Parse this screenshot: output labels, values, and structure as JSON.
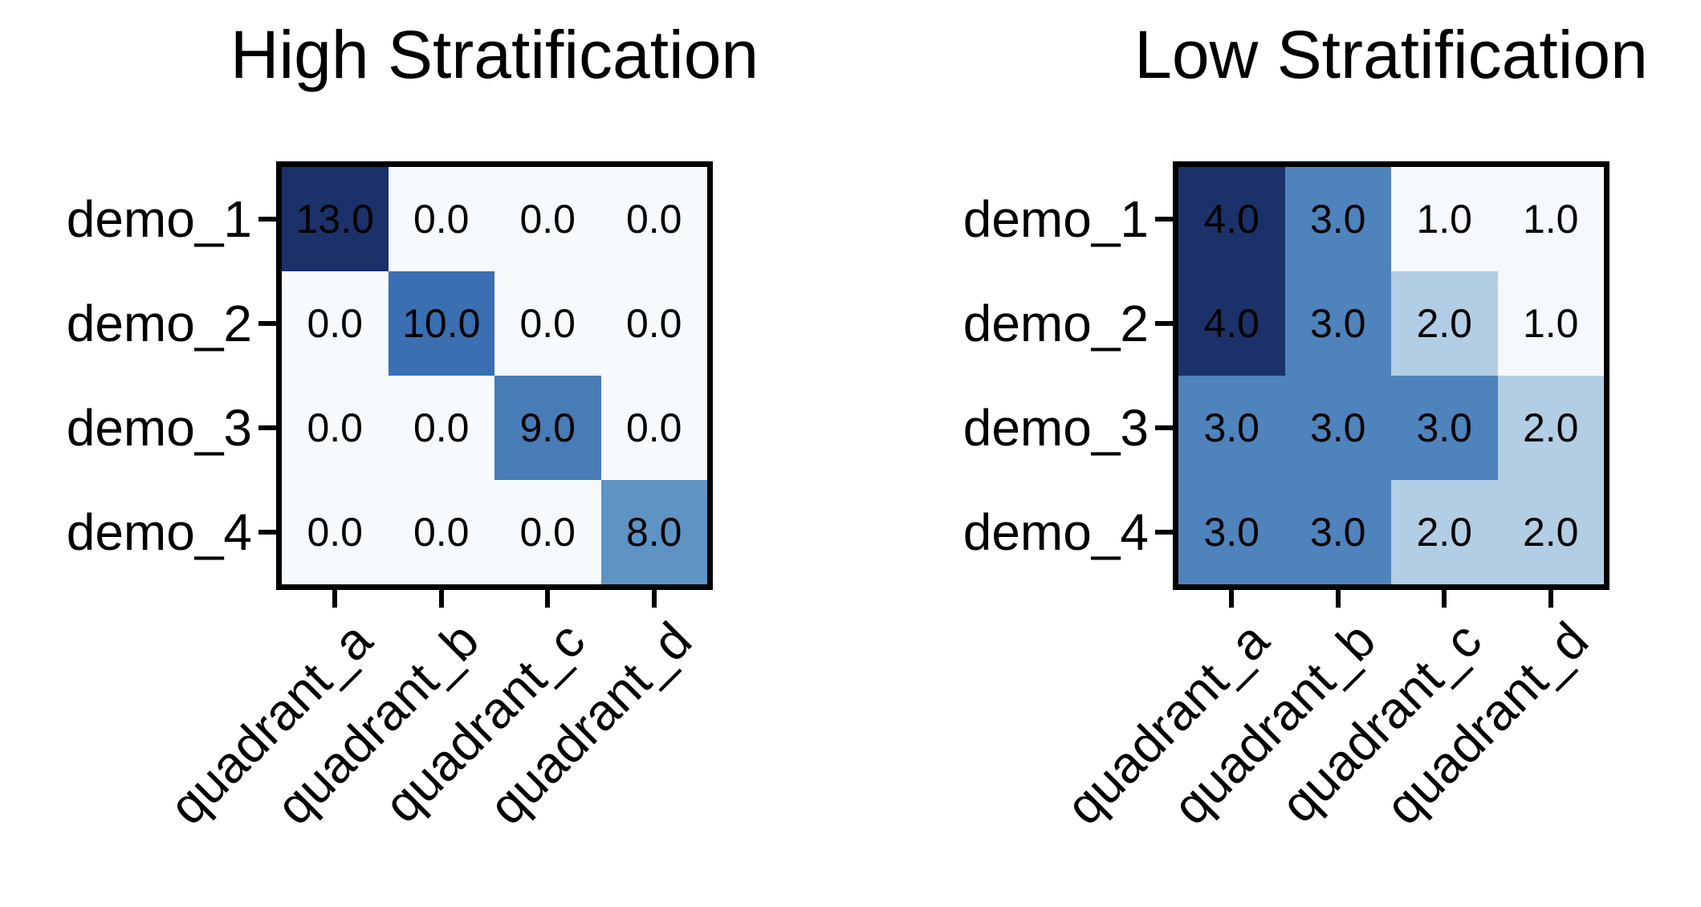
{
  "figure": {
    "background": "#ffffff",
    "axis_color": "#000000",
    "annotation_text_color": "#000000"
  },
  "chart_data": [
    {
      "type": "heatmap",
      "title": "High Stratification",
      "colormap": "Blues",
      "rows": [
        "demo_1",
        "demo_2",
        "demo_3",
        "demo_4"
      ],
      "columns": [
        "quadrant_a",
        "quadrant_b",
        "quadrant_c",
        "quadrant_d"
      ],
      "values": [
        [
          13.0,
          0.0,
          0.0,
          0.0
        ],
        [
          0.0,
          10.0,
          0.0,
          0.0
        ],
        [
          0.0,
          0.0,
          9.0,
          0.0
        ],
        [
          0.0,
          0.0,
          0.0,
          8.0
        ]
      ],
      "cell_labels": [
        [
          "13.0",
          "0.0",
          "0.0",
          "0.0"
        ],
        [
          "0.0",
          "10.0",
          "0.0",
          "0.0"
        ],
        [
          "0.0",
          "0.0",
          "9.0",
          "0.0"
        ],
        [
          "0.0",
          "0.0",
          "0.0",
          "8.0"
        ]
      ],
      "cell_colors": [
        [
          "#1b3169",
          "#f6fafd",
          "#f6fafd",
          "#f6fafd"
        ],
        [
          "#f6fafd",
          "#3a6fb2",
          "#f6fafd",
          "#f6fafd"
        ],
        [
          "#f6fafd",
          "#f6fafd",
          "#477cb6",
          "#f6fafd"
        ],
        [
          "#f6fafd",
          "#f6fafd",
          "#f6fafd",
          "#5e93c4"
        ]
      ],
      "x_tick_rotation_deg": 45,
      "grid": false,
      "legend": "none"
    },
    {
      "type": "heatmap",
      "title": "Low Stratification",
      "colormap": "Blues",
      "rows": [
        "demo_1",
        "demo_2",
        "demo_3",
        "demo_4"
      ],
      "columns": [
        "quadrant_a",
        "quadrant_b",
        "quadrant_c",
        "quadrant_d"
      ],
      "values": [
        [
          4.0,
          3.0,
          1.0,
          1.0
        ],
        [
          4.0,
          3.0,
          2.0,
          1.0
        ],
        [
          3.0,
          3.0,
          3.0,
          2.0
        ],
        [
          3.0,
          3.0,
          2.0,
          2.0
        ]
      ],
      "cell_labels": [
        [
          "4.0",
          "3.0",
          "1.0",
          "1.0"
        ],
        [
          "4.0",
          "3.0",
          "2.0",
          "1.0"
        ],
        [
          "3.0",
          "3.0",
          "3.0",
          "2.0"
        ],
        [
          "3.0",
          "3.0",
          "2.0",
          "2.0"
        ]
      ],
      "cell_colors": [
        [
          "#1b3169",
          "#4e83bc",
          "#f5f9fd",
          "#f5f9fd"
        ],
        [
          "#1b3169",
          "#4e83bc",
          "#b2cee4",
          "#f5f9fd"
        ],
        [
          "#4e83bc",
          "#4e83bc",
          "#4e83bc",
          "#b2cee4"
        ],
        [
          "#4e83bc",
          "#4e83bc",
          "#b2cee4",
          "#b2cee4"
        ]
      ],
      "x_tick_rotation_deg": 45,
      "grid": false,
      "legend": "none"
    }
  ]
}
